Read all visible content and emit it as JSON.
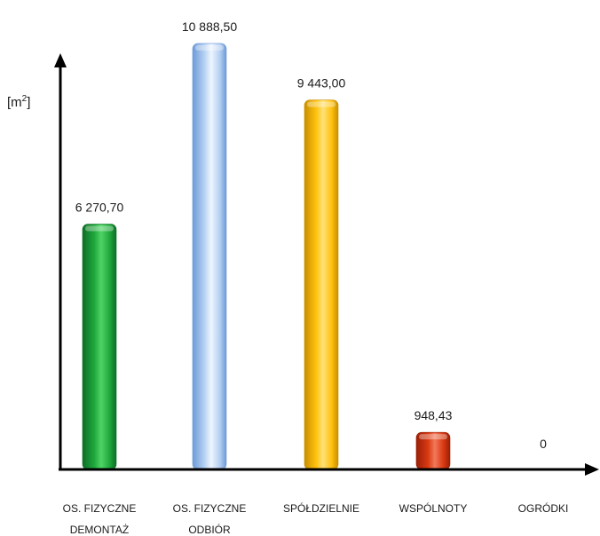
{
  "chart_data": {
    "type": "bar",
    "ylabel": "[m²]",
    "categories": [
      [
        "OS. FIZYCZNE",
        "DEMONTAŻ"
      ],
      [
        "OS. FIZYCZNE",
        "ODBIÓR"
      ],
      [
        "SPÓŁDZIELNIE"
      ],
      [
        "WSPÓLNOTY"
      ],
      [
        "OGRÓDKI"
      ]
    ],
    "values": [
      6270.7,
      10888.5,
      9443.0,
      948.43,
      0
    ],
    "value_labels": [
      "6 270,70",
      "10 888,50",
      "9 443,00",
      "948,43",
      "0"
    ],
    "ylim": [
      0,
      11000
    ],
    "grid": false,
    "legend": "none",
    "bar_colors": [
      {
        "light": "#4fd466",
        "mid": "#1fa83c",
        "dark": "#0f6e26"
      },
      {
        "light": "#eef5ff",
        "mid": "#b6d1f2",
        "dark": "#6d9ad8"
      },
      {
        "light": "#ffe27a",
        "mid": "#ffc20e",
        "dark": "#c98f00"
      },
      {
        "light": "#f2795a",
        "mid": "#d93a12",
        "dark": "#9a1f06"
      },
      {
        "light": "#dddddd",
        "mid": "#bbbbbb",
        "dark": "#888888"
      }
    ],
    "axis_color": "#000000"
  }
}
